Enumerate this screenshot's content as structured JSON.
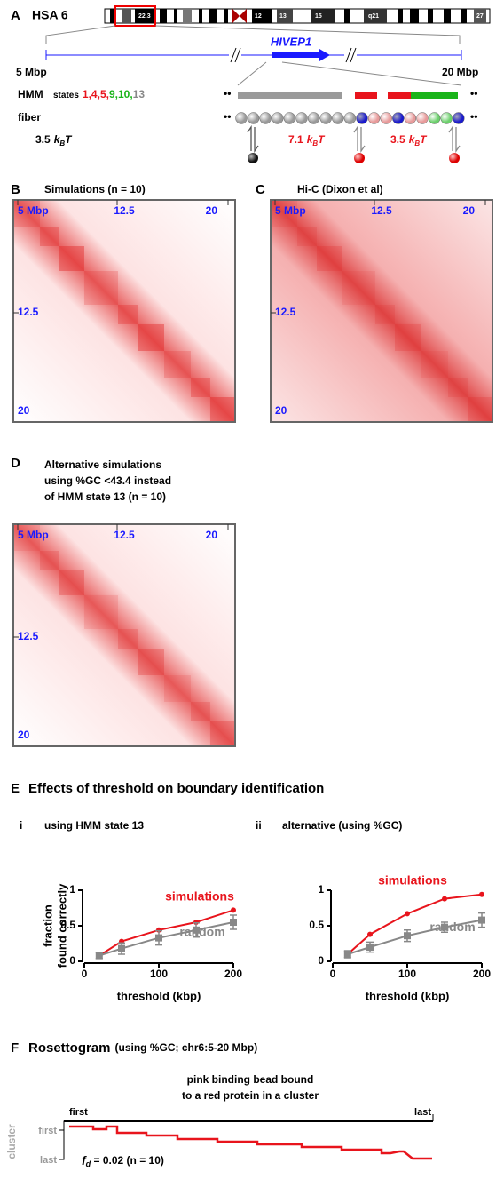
{
  "panel_a": {
    "label": "A",
    "chromosome": "HSA 6",
    "bands": [
      "22.3",
      "12",
      "13",
      "15",
      "q21",
      "27"
    ],
    "start": "5 Mbp",
    "end": "20 Mbp",
    "gene": "HIVEP1",
    "hmm_label": "HMM",
    "states_label": "states",
    "states": [
      {
        "label": "1,",
        "color": "#e8141c"
      },
      {
        "label": "4,",
        "color": "#e8141c"
      },
      {
        "label": "5,",
        "color": "#e8141c"
      },
      {
        "label": "9,",
        "color": "#19b419"
      },
      {
        "label": "10,",
        "color": "#19b419"
      },
      {
        "label": "13",
        "color": "#888888"
      }
    ],
    "fiber_label": "fiber",
    "unit_k": "k",
    "unit_sub": "B",
    "unit_t": "T",
    "energies": [
      {
        "value": "3.5",
        "color": "#000000"
      },
      {
        "value": "7.1",
        "color": "#e8141c"
      },
      {
        "value": "3.5",
        "color": "#e8141c"
      }
    ]
  },
  "panel_b": {
    "label": "B",
    "title": "Simulations (n = 10)",
    "top_labels": [
      "5 Mbp",
      "12.5",
      "20"
    ],
    "left_labels": [
      "12.5",
      "20"
    ]
  },
  "panel_c": {
    "label": "C",
    "title": "Hi-C (Dixon et al)",
    "top_labels": [
      "5 Mbp",
      "12.5",
      "20"
    ],
    "left_labels": [
      "12.5",
      "20"
    ]
  },
  "panel_d": {
    "label": "D",
    "title": [
      "Alternative simulations",
      "using %GC <43.4 instead",
      "of HMM state 13 (n = 10)"
    ],
    "top_labels": [
      "5 Mbp",
      "12.5",
      "20"
    ],
    "left_labels": [
      "12.5",
      "20"
    ]
  },
  "panel_e": {
    "label": "E",
    "title": "Effects of threshold on boundary identification",
    "subpanels": [
      {
        "label": "i",
        "title": "using HMM state 13"
      },
      {
        "label": "ii",
        "title": "alternative (using %GC)"
      }
    ]
  },
  "chart_data": [
    {
      "type": "line",
      "x": [
        20,
        50,
        100,
        150,
        200
      ],
      "xlim": [
        0,
        200
      ],
      "xticks": [
        0,
        100,
        200
      ],
      "ylim": [
        0,
        1
      ],
      "yticks": [
        0,
        0.5,
        1
      ],
      "x_label": "threshold (kbp)",
      "y_label": [
        "fraction",
        "found correctly"
      ],
      "series": [
        {
          "name": "simulations",
          "color": "#e8141c",
          "values": [
            0.08,
            0.28,
            0.44,
            0.55,
            0.72
          ]
        },
        {
          "name": "random",
          "color": "#888888",
          "values": [
            0.08,
            0.18,
            0.33,
            0.44,
            0.55
          ],
          "errors": [
            0.04,
            0.08,
            0.1,
            0.1,
            0.1
          ]
        }
      ]
    },
    {
      "type": "line",
      "x": [
        20,
        50,
        100,
        150,
        200
      ],
      "xlim": [
        0,
        200
      ],
      "xticks": [
        0,
        100,
        200
      ],
      "ylim": [
        0,
        1
      ],
      "yticks": [
        0,
        0.5,
        1
      ],
      "x_label": "threshold (kbp)",
      "series": [
        {
          "name": "simulations",
          "color": "#e8141c",
          "values": [
            0.1,
            0.38,
            0.67,
            0.88,
            0.94
          ]
        },
        {
          "name": "random",
          "color": "#888888",
          "values": [
            0.1,
            0.2,
            0.36,
            0.48,
            0.58
          ],
          "errors": [
            0.05,
            0.07,
            0.08,
            0.07,
            0.1
          ]
        }
      ]
    }
  ],
  "panel_f": {
    "label": "F",
    "title": "Rosettogram",
    "subtitle": "(using %GC; chr6:5-20 Mbp)",
    "caption": [
      "pink binding bead bound",
      "to a red protein in a cluster"
    ],
    "first": "first",
    "last": "last",
    "cluster_label": "cluster",
    "fd_symbol": "f",
    "fd_sub": "d",
    "fd_text": " = 0.02 (n = 10)"
  }
}
